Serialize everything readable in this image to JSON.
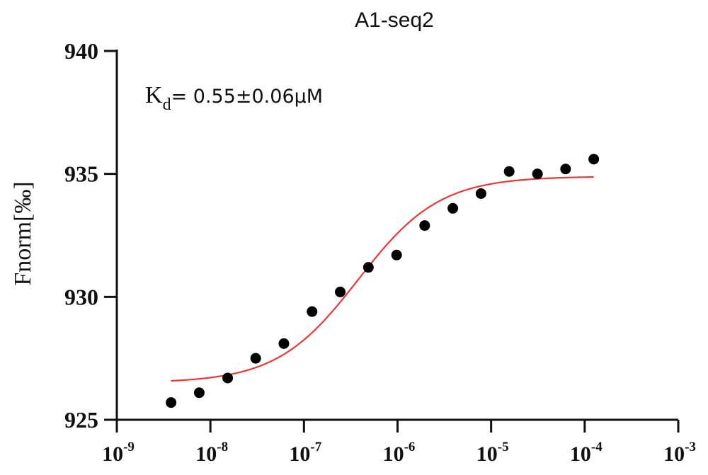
{
  "chart_data": {
    "type": "scatter",
    "title": "A1-seq2",
    "xlabel": "",
    "ylabel": "Fnorm[‰]",
    "xscale": "log",
    "xlim": [
      1e-09,
      0.001
    ],
    "ylim": [
      925,
      940
    ],
    "x_ticks": [
      {
        "base": "10",
        "exp": "-9"
      },
      {
        "base": "10",
        "exp": "-8"
      },
      {
        "base": "10",
        "exp": "-7"
      },
      {
        "base": "10",
        "exp": "-6"
      },
      {
        "base": "10",
        "exp": "-5"
      },
      {
        "base": "10",
        "exp": "-4"
      },
      {
        "base": "10",
        "exp": "-3"
      }
    ],
    "y_ticks": [
      "925",
      "930",
      "935",
      "940"
    ],
    "annotation": {
      "k": "K",
      "sub": "d",
      "value": "= 0.55±0.06μM"
    },
    "series": [
      {
        "name": "data",
        "color": "#000000",
        "x": [
          3.8e-09,
          7.6e-09,
          1.53e-08,
          3.05e-08,
          6.1e-08,
          1.22e-07,
          2.44e-07,
          4.88e-07,
          9.77e-07,
          1.95e-06,
          3.9e-06,
          7.8e-06,
          1.56e-05,
          3.13e-05,
          6.25e-05,
          0.000125
        ],
        "y": [
          925.7,
          926.1,
          926.7,
          927.5,
          928.1,
          929.4,
          930.2,
          931.2,
          931.7,
          932.9,
          933.6,
          934.2,
          935.1,
          935.0,
          935.2,
          935.6
        ]
      },
      {
        "name": "fit",
        "type": "line",
        "color": "#e8383a",
        "model": "sigmoid",
        "bottom": 926.5,
        "top": 934.9,
        "ec50": 3.8e-07,
        "hill": 1.0,
        "x_range": [
          3.8e-09,
          0.000125
        ]
      }
    ]
  }
}
